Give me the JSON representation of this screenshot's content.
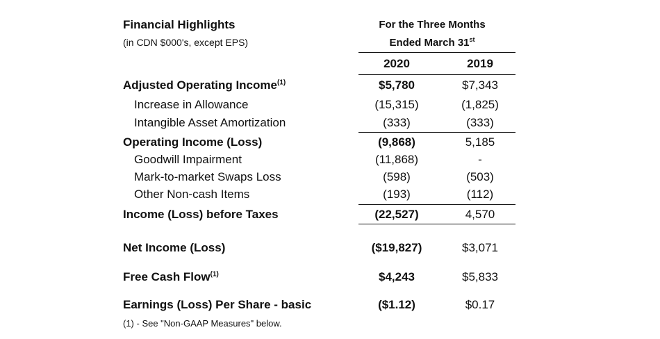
{
  "header": {
    "title": "Financial Highlights",
    "subtitle": "(in CDN $000's, except EPS)",
    "period_line1": "For the Three Months",
    "period_line2": "Ended March 31",
    "period_suffix": "st",
    "year1": "2020",
    "year2": "2019"
  },
  "rows": [
    {
      "label": "Adjusted Operating Income",
      "note": "(1)",
      "v2020": "$5,780",
      "v2019": "$7,343"
    },
    {
      "label": "Increase in Allowance",
      "v2020": "(15,315)",
      "v2019": "(1,825)"
    },
    {
      "label": "Intangible Asset Amortization",
      "v2020": "(333)",
      "v2019": "(333)"
    },
    {
      "label": "Operating Income (Loss)",
      "v2020": "(9,868)",
      "v2019": "5,185"
    },
    {
      "label": "Goodwill Impairment",
      "v2020": "(11,868)",
      "v2019": "-"
    },
    {
      "label": "Mark-to-market Swaps Loss",
      "v2020": "(598)",
      "v2019": "(503)"
    },
    {
      "label": "Other Non-cash Items",
      "v2020": "(193)",
      "v2019": "(112)"
    },
    {
      "label": "Income (Loss) before Taxes",
      "v2020": "(22,527)",
      "v2019": "4,570"
    },
    {
      "label": "Net Income (Loss)",
      "v2020": "($19,827)",
      "v2019": "$3,071"
    },
    {
      "label": "Free Cash Flow",
      "note": "(1)",
      "v2020": "$4,243",
      "v2019": "$5,833"
    },
    {
      "label": "Earnings (Loss) Per Share - basic",
      "v2020": "($1.12)",
      "v2019": "$0.17"
    }
  ],
  "footnote": "(1)  - See \"Non-GAAP Measures\" below."
}
